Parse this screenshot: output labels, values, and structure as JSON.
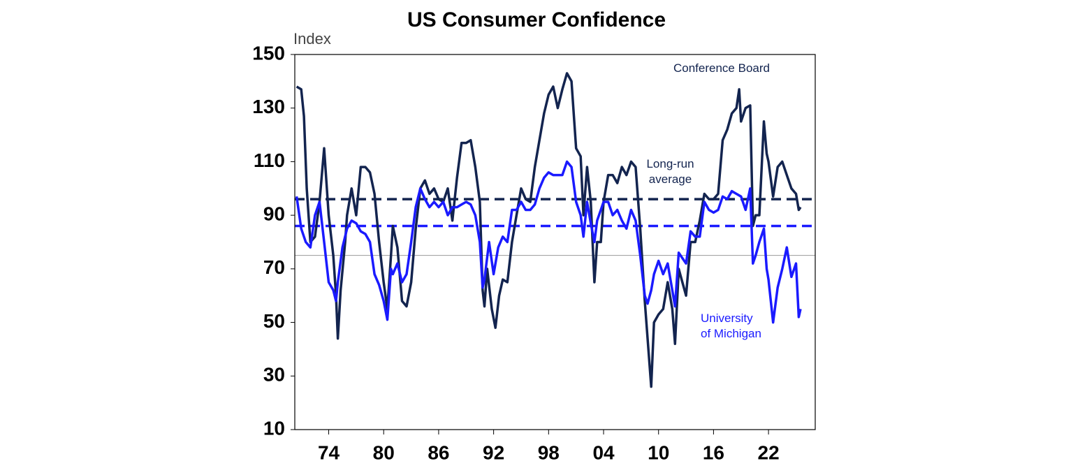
{
  "chart_data": {
    "type": "line",
    "title": "US Consumer Confidence",
    "y_label": "Index",
    "xlim": [
      1970.3,
      2027.1
    ],
    "ylim": [
      10,
      150
    ],
    "xticks": [
      {
        "value": 1974,
        "label": "74"
      },
      {
        "value": 1980,
        "label": "80"
      },
      {
        "value": 1986,
        "label": "86"
      },
      {
        "value": 1992,
        "label": "92"
      },
      {
        "value": 1998,
        "label": "98"
      },
      {
        "value": 2004,
        "label": "04"
      },
      {
        "value": 2010,
        "label": "10"
      },
      {
        "value": 2016,
        "label": "16"
      },
      {
        "value": 2022,
        "label": "22"
      }
    ],
    "yticks": [
      10,
      30,
      50,
      70,
      90,
      110,
      130,
      150
    ],
    "grid": false,
    "reference_lines": [
      {
        "value": 96,
        "color": "#13244f",
        "dashed": true
      },
      {
        "value": 86,
        "color": "#1a1aff",
        "dashed": true
      },
      {
        "value": 75,
        "color": "#999999",
        "dashed": false
      }
    ],
    "annotations": [
      {
        "text": "Long-run average"
      }
    ],
    "series": [
      {
        "name": "Conference Board",
        "color": "#13244f",
        "x": [
          1970.5,
          1971,
          1971.3,
          1971.6,
          1972,
          1972.5,
          1973,
          1973.5,
          1974,
          1974.5,
          1974.8,
          1975,
          1975.3,
          1975.8,
          1976,
          1976.5,
          1977,
          1977.5,
          1978,
          1978.5,
          1979,
          1979.5,
          1980,
          1980.4,
          1980.8,
          1981,
          1981.5,
          1982,
          1982.5,
          1983,
          1983.5,
          1984,
          1984.5,
          1985,
          1985.5,
          1986,
          1986.5,
          1987,
          1987.5,
          1988,
          1988.5,
          1989,
          1989.5,
          1990,
          1990.5,
          1990.8,
          1991,
          1991.3,
          1991.8,
          1992.2,
          1992.6,
          1993,
          1993.5,
          1994,
          1994.5,
          1995,
          1995.5,
          1996,
          1996.5,
          1997,
          1997.5,
          1998,
          1998.5,
          1999,
          1999.5,
          2000,
          2000.5,
          2001,
          2001.5,
          2001.8,
          2002.2,
          2002.6,
          2003,
          2003.3,
          2003.7,
          2004,
          2004.5,
          2005,
          2005.5,
          2006,
          2006.5,
          2007,
          2007.5,
          2008,
          2008.5,
          2009,
          2009.2,
          2009.5,
          2010,
          2010.5,
          2011,
          2011.5,
          2011.8,
          2012.2,
          2012.6,
          2013,
          2013.5,
          2014,
          2014.5,
          2015,
          2015.5,
          2016,
          2016.5,
          2017,
          2017.5,
          2018,
          2018.5,
          2018.8,
          2019,
          2019.5,
          2020,
          2020.3,
          2020.6,
          2021,
          2021.5,
          2021.8,
          2022,
          2022.5,
          2023,
          2023.5,
          2024,
          2024.5,
          2025,
          2025.3,
          2025.5
        ],
        "values": [
          138,
          137,
          127,
          100,
          80,
          82,
          95,
          115,
          90,
          75,
          60,
          44,
          62,
          80,
          90,
          100,
          90,
          108,
          108,
          106,
          98,
          80,
          65,
          55,
          75,
          86,
          78,
          58,
          56,
          65,
          85,
          100,
          103,
          98,
          100,
          96,
          95,
          100,
          88,
          104,
          117,
          117,
          118,
          108,
          95,
          62,
          56,
          70,
          55,
          48,
          60,
          66,
          65,
          80,
          90,
          100,
          96,
          95,
          108,
          118,
          128,
          135,
          138,
          130,
          137,
          143,
          140,
          115,
          112,
          90,
          108,
          95,
          65,
          80,
          80,
          95,
          105,
          105,
          102,
          108,
          105,
          110,
          108,
          85,
          58,
          35,
          26,
          50,
          53,
          55,
          65,
          55,
          42,
          70,
          65,
          60,
          80,
          80,
          88,
          98,
          96,
          96,
          98,
          118,
          122,
          128,
          130,
          137,
          125,
          130,
          131,
          86,
          90,
          90,
          125,
          113,
          110,
          97,
          108,
          110,
          105,
          100,
          98,
          92,
          93
        ]
      },
      {
        "name": "University of Michigan",
        "color": "#1a1aff",
        "x": [
          1970.5,
          1971,
          1971.5,
          1972,
          1972.5,
          1973,
          1973.5,
          1974,
          1974.5,
          1974.8,
          1975,
          1975.5,
          1976,
          1976.5,
          1977,
          1977.5,
          1978,
          1978.5,
          1979,
          1979.5,
          1980,
          1980.4,
          1980.8,
          1981,
          1981.5,
          1982,
          1982.5,
          1983,
          1983.5,
          1984,
          1984.5,
          1985,
          1985.5,
          1986,
          1986.5,
          1987,
          1987.5,
          1988,
          1988.5,
          1989,
          1989.5,
          1990,
          1990.5,
          1990.8,
          1991,
          1991.5,
          1992,
          1992.5,
          1993,
          1993.5,
          1994,
          1994.5,
          1995,
          1995.5,
          1996,
          1996.5,
          1997,
          1997.5,
          1998,
          1998.5,
          1999,
          1999.5,
          2000,
          2000.5,
          2001,
          2001.5,
          2001.8,
          2002.2,
          2002.6,
          2003,
          2003.3,
          2003.7,
          2004,
          2004.5,
          2005,
          2005.5,
          2006,
          2006.5,
          2007,
          2007.5,
          2008,
          2008.5,
          2008.8,
          2009.2,
          2009.5,
          2010,
          2010.5,
          2011,
          2011.5,
          2011.8,
          2012.2,
          2012.6,
          2013,
          2013.5,
          2014,
          2014.5,
          2015,
          2015.5,
          2016,
          2016.5,
          2017,
          2017.5,
          2018,
          2018.5,
          2019,
          2019.5,
          2020,
          2020.3,
          2020.6,
          2021,
          2021.5,
          2021.8,
          2022,
          2022.5,
          2023,
          2023.5,
          2024,
          2024.5,
          2025,
          2025.3,
          2025.5
        ],
        "values": [
          97,
          85,
          80,
          78,
          90,
          95,
          80,
          65,
          62,
          58,
          65,
          78,
          85,
          88,
          87,
          84,
          83,
          80,
          68,
          64,
          58,
          51,
          70,
          68,
          72,
          65,
          68,
          80,
          93,
          100,
          96,
          93,
          95,
          93,
          95,
          90,
          93,
          93,
          94,
          95,
          94,
          90,
          80,
          63,
          66,
          80,
          68,
          78,
          82,
          80,
          92,
          92,
          95,
          92,
          92,
          94,
          100,
          104,
          106,
          105,
          105,
          105,
          110,
          108,
          95,
          90,
          82,
          95,
          87,
          80,
          88,
          92,
          95,
          95,
          90,
          92,
          88,
          85,
          92,
          88,
          75,
          60,
          57,
          62,
          68,
          73,
          68,
          72,
          62,
          56,
          76,
          74,
          72,
          84,
          82,
          82,
          95,
          92,
          91,
          92,
          97,
          96,
          99,
          98,
          97,
          92,
          100,
          72,
          75,
          80,
          85,
          70,
          66,
          50,
          63,
          70,
          78,
          67,
          72,
          52,
          55
        ]
      }
    ]
  }
}
